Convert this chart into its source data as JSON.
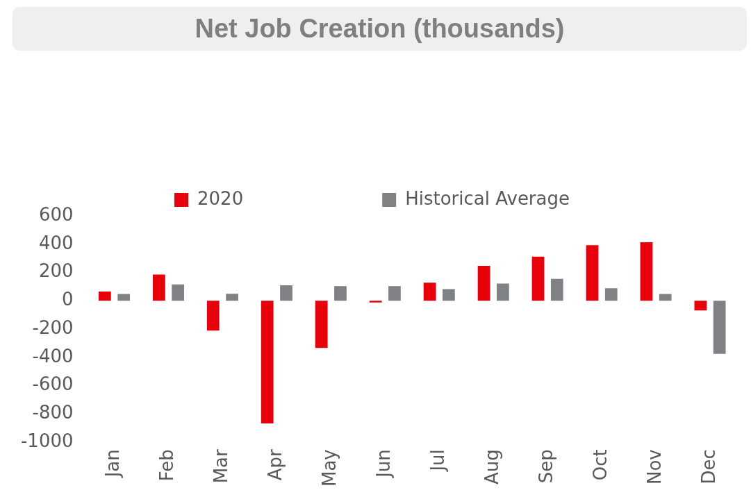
{
  "chart_data": {
    "type": "bar",
    "title": "Net Job Creation (thousands)",
    "categories": [
      "Jan",
      "Feb",
      "Mar",
      "Apr",
      "May",
      "Jun",
      "Jul",
      "Aug",
      "Sep",
      "Oct",
      "Nov",
      "Dec"
    ],
    "series": [
      {
        "name": "2020",
        "color": "#e8000b",
        "values": [
          65,
          185,
          -211,
          -866,
          -333,
          -12,
          128,
          247,
          312,
          393,
          414,
          -68
        ]
      },
      {
        "name": "Historical Average",
        "color": "#7f8184",
        "values": [
          48,
          116,
          50,
          110,
          104,
          104,
          83,
          122,
          155,
          89,
          48,
          -375
        ]
      }
    ],
    "ylim": [
      -1000,
      600
    ],
    "yticks": [
      -1000,
      -800,
      -600,
      -400,
      -200,
      0,
      200,
      400,
      600
    ],
    "grid": false,
    "legend": "top"
  }
}
